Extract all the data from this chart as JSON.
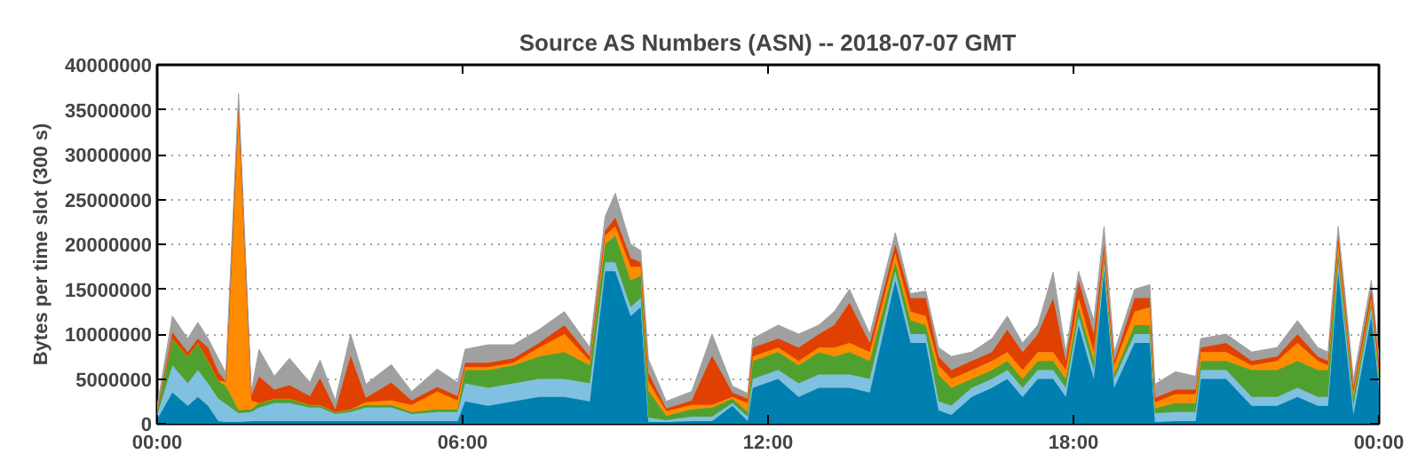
{
  "chart_data": {
    "type": "area",
    "stacked": true,
    "title": "Source AS Numbers (ASN) -- 2018-07-07 GMT",
    "ylabel": "Bytes per time slot (300 s)",
    "x": [
      0.0,
      0.3,
      0.6,
      0.8,
      1.0,
      1.2,
      1.35,
      1.6,
      1.85,
      2.0,
      2.3,
      2.6,
      3.0,
      3.2,
      3.5,
      3.8,
      4.1,
      4.6,
      5.0,
      5.5,
      5.9,
      6.05,
      6.5,
      7.0,
      7.5,
      8.0,
      8.5,
      8.8,
      9.0,
      9.3,
      9.5,
      9.65,
      10.0,
      10.5,
      10.9,
      11.3,
      11.6,
      11.7,
      12.2,
      12.6,
      13.0,
      13.3,
      13.6,
      14.0,
      14.5,
      14.8,
      15.1,
      15.35,
      15.6,
      16.0,
      16.4,
      16.7,
      17.0,
      17.3,
      17.6,
      17.85,
      18.1,
      18.4,
      18.6,
      18.8,
      19.2,
      19.5,
      19.6,
      20.0,
      20.4,
      20.5,
      21.0,
      21.5,
      22.0,
      22.4,
      22.8,
      23.0,
      23.2,
      23.5,
      23.85,
      24.0
    ],
    "series": [
      {
        "color": "#0080b0",
        "values": [
          500000.0,
          3500000.0,
          2000000.0,
          3000000.0,
          2000000.0,
          300000.0,
          200000.0,
          200000.0,
          300000.0,
          300000.0,
          300000.0,
          300000.0,
          300000.0,
          300000.0,
          300000.0,
          300000.0,
          300000.0,
          300000.0,
          300000.0,
          300000.0,
          300000.0,
          2500000.0,
          2000000.0,
          2500000.0,
          3000000.0,
          3000000.0,
          2500000.0,
          17000000.0,
          17000000.0,
          12000000.0,
          13000000.0,
          200000.0,
          200000.0,
          300000.0,
          300000.0,
          2000000.0,
          300000.0,
          4000000.0,
          5000000.0,
          3000000.0,
          4000000.0,
          4000000.0,
          4000000.0,
          3500000.0,
          16000000.0,
          9000000.0,
          9000000.0,
          1500000.0,
          1000000.0,
          3000000.0,
          4000000.0,
          5000000.0,
          3000000.0,
          5000000.0,
          5000000.0,
          3000000.0,
          11000000.0,
          5000000.0,
          17000000.0,
          4000000.0,
          9000000.0,
          9000000.0,
          200000.0,
          300000.0,
          300000.0,
          5000000.0,
          5000000.0,
          2000000.0,
          2000000.0,
          3000000.0,
          2000000.0,
          2000000.0,
          17000000.0,
          1000000.0,
          12000000.0,
          4000000.0
        ]
      },
      {
        "color": "#80c0e0",
        "values": [
          500000.0,
          3000000.0,
          2500000.0,
          3000000.0,
          2500000.0,
          2500000.0,
          2000000.0,
          1000000.0,
          1000000.0,
          1500000.0,
          2000000.0,
          2000000.0,
          1500000.0,
          1500000.0,
          800000.0,
          1000000.0,
          1500000.0,
          1500000.0,
          800000.0,
          1000000.0,
          1000000.0,
          2000000.0,
          2000000.0,
          2000000.0,
          2000000.0,
          2000000.0,
          2000000.0,
          1000000.0,
          1000000.0,
          1000000.0,
          1000000.0,
          500000.0,
          200000.0,
          500000.0,
          500000.0,
          300000.0,
          500000.0,
          1000000.0,
          1000000.0,
          1500000.0,
          1500000.0,
          1500000.0,
          1500000.0,
          1500000.0,
          1000000.0,
          1000000.0,
          1000000.0,
          1000000.0,
          1000000.0,
          1000000.0,
          1000000.0,
          1000000.0,
          1000000.0,
          1000000.0,
          1000000.0,
          1000000.0,
          1000000.0,
          1000000.0,
          1000000.0,
          1000000.0,
          1000000.0,
          1000000.0,
          1000000.0,
          1000000.0,
          1000000.0,
          1000000.0,
          1000000.0,
          1000000.0,
          1000000.0,
          1000000.0,
          1000000.0,
          1000000.0,
          1000000.0,
          1000000.0,
          1000000.0,
          1000000.0
        ]
      },
      {
        "color": "#50a030",
        "values": [
          500000.0,
          3000000.0,
          3000000.0,
          3000000.0,
          2500000.0,
          2000000.0,
          2000000.0,
          300000.0,
          300000.0,
          500000.0,
          500000.0,
          500000.0,
          300000.0,
          300000.0,
          200000.0,
          300000.0,
          300000.0,
          300000.0,
          200000.0,
          300000.0,
          300000.0,
          1500000.0,
          2000000.0,
          2000000.0,
          2500000.0,
          3000000.0,
          2000000.0,
          2000000.0,
          3000000.0,
          3000000.0,
          2500000.0,
          3000000.0,
          500000.0,
          800000.0,
          1000000.0,
          500000.0,
          500000.0,
          2000000.0,
          2000000.0,
          2000000.0,
          2500000.0,
          2000000.0,
          2500000.0,
          2000000.0,
          1000000.0,
          1500000.0,
          1000000.0,
          3000000.0,
          2000000.0,
          1000000.0,
          1000000.0,
          1000000.0,
          1000000.0,
          1000000.0,
          1000000.0,
          1000000.0,
          1000000.0,
          1000000.0,
          500000.0,
          500000.0,
          1000000.0,
          1000000.0,
          500000.0,
          1000000.0,
          1000000.0,
          1000000.0,
          1000000.0,
          3000000.0,
          3000000.0,
          3000000.0,
          3000000.0,
          3000000.0,
          1000000.0,
          1000000.0,
          500000.0,
          500000.0
        ]
      },
      {
        "color": "#ff8c00",
        "values": [
          0,
          0,
          0,
          0,
          0,
          0,
          500000.0,
          33000000.0,
          1000000.0,
          0,
          0,
          0,
          0,
          0,
          0,
          0,
          300000.0,
          500000.0,
          800000.0,
          2000000.0,
          1000000.0,
          300000.0,
          300000.0,
          300000.0,
          1000000.0,
          2000000.0,
          500000.0,
          1000000.0,
          1000000.0,
          1500000.0,
          1000000.0,
          1000000.0,
          500000.0,
          500000.0,
          300000.0,
          200000.0,
          1000000.0,
          500000.0,
          500000.0,
          500000.0,
          500000.0,
          1000000.0,
          1000000.0,
          1000000.0,
          1000000.0,
          1000000.0,
          1000000.0,
          1000000.0,
          1000000.0,
          1000000.0,
          1000000.0,
          1000000.0,
          1000000.0,
          1000000.0,
          1000000.0,
          1000000.0,
          1000000.0,
          1000000.0,
          500000.0,
          1000000.0,
          1500000.0,
          2000000.0,
          700000.0,
          1000000.0,
          1000000.0,
          1000000.0,
          1000000.0,
          500000.0,
          1000000.0,
          2000000.0,
          1000000.0,
          500000.0,
          1000000.0,
          500000.0,
          500000.0,
          500000.0
        ]
      },
      {
        "color": "#e04000",
        "values": [
          0,
          700000.0,
          500000.0,
          500000.0,
          1500000.0,
          1000000.0,
          0,
          800000.0,
          500000.0,
          3000000.0,
          1000000.0,
          1500000.0,
          1000000.0,
          3000000.0,
          300000.0,
          6000000.0,
          500000.0,
          2000000.0,
          500000.0,
          500000.0,
          500000.0,
          500000.0,
          500000.0,
          500000.0,
          500000.0,
          1000000.0,
          500000.0,
          500000.0,
          1000000.0,
          1000000.0,
          500000.0,
          1000000.0,
          300000.0,
          500000.0,
          5500000.0,
          500000.0,
          500000.0,
          1000000.0,
          1000000.0,
          1500000.0,
          1500000.0,
          2500000.0,
          4500000.0,
          1000000.0,
          1000000.0,
          1500000.0,
          2000000.0,
          1000000.0,
          1000000.0,
          1000000.0,
          1000000.0,
          2500000.0,
          2000000.0,
          2000000.0,
          6000000.0,
          1000000.0,
          2000000.0,
          2000000.0,
          1000000.0,
          500000.0,
          1500000.0,
          1000000.0,
          500000.0,
          500000.0,
          500000.0,
          500000.0,
          1000000.0,
          500000.0,
          500000.0,
          1000000.0,
          500000.0,
          500000.0,
          1000000.0,
          500000.0,
          1000000.0,
          1000000.0
        ]
      },
      {
        "color": "#a0a0a0",
        "values": [
          500000.0,
          1800000.0,
          1500000.0,
          1800000.0,
          1000000.0,
          1500000.0,
          1000000.0,
          1500000.0,
          500000.0,
          3000000.0,
          1500000.0,
          3000000.0,
          1500000.0,
          2000000.0,
          1000000.0,
          2400000.0,
          1500000.0,
          2000000.0,
          1000000.0,
          2000000.0,
          1500000.0,
          1500000.0,
          2000000.0,
          1500000.0,
          1500000.0,
          1500000.0,
          1000000.0,
          1600000.0,
          2700000.0,
          1500000.0,
          1300000.0,
          1500000.0,
          800000.0,
          1000000.0,
          2400000.0,
          700000.0,
          600000.0,
          1000000.0,
          1500000.0,
          1500000.0,
          1000000.0,
          1500000.0,
          1500000.0,
          1000000.0,
          1300000.0,
          500000.0,
          800000.0,
          1000000.0,
          1500000.0,
          1000000.0,
          1500000.0,
          1500000.0,
          1000000.0,
          1000000.0,
          2900000.0,
          1000000.0,
          1000000.0,
          1500000.0,
          2000000.0,
          1000000.0,
          1000000.0,
          1500000.0,
          1500000.0,
          2000000.0,
          1500000.0,
          1000000.0,
          1000000.0,
          1000000.0,
          1000000.0,
          1500000.0,
          1000000.0,
          1000000.0,
          1000000.0,
          1000000.0,
          1000000.0,
          500000.0
        ]
      }
    ],
    "xlim": [
      0,
      24
    ],
    "xticks": [
      {
        "value": 0,
        "label": "00:00"
      },
      {
        "value": 6,
        "label": "06:00"
      },
      {
        "value": 12,
        "label": "12:00"
      },
      {
        "value": 18,
        "label": "18:00"
      },
      {
        "value": 24,
        "label": "00:00"
      }
    ],
    "ylim": [
      0,
      40000000
    ],
    "yticks": [
      0,
      5000000,
      10000000,
      15000000,
      20000000,
      25000000,
      30000000,
      35000000,
      40000000
    ],
    "grid": true
  }
}
